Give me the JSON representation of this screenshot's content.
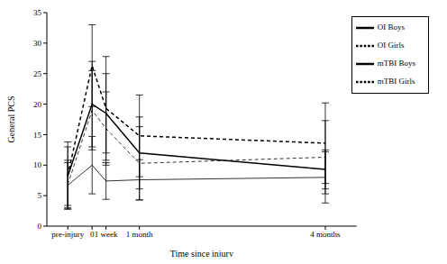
{
  "chart_data": {
    "type": "line",
    "x_label": "Time since injury",
    "y_label": "General PCS",
    "x": [
      -1.75,
      0,
      1,
      3.4,
      16.75
    ],
    "xlim": [
      -3.25,
      19
    ],
    "xticks": [
      {
        "value": -1.75,
        "label": "pre-injury"
      },
      0,
      {
        "value": 1,
        "label": "1 week"
      },
      {
        "value": 3.4,
        "label": "1 month"
      },
      {
        "value": 16.75,
        "label": "4 months"
      }
    ],
    "ylim": [
      0,
      35
    ],
    "yticks": [
      0,
      5,
      10,
      15,
      20,
      25,
      30,
      35
    ],
    "grid": false,
    "legend": "upper right",
    "series": [
      {
        "name": "mTBI Girls",
        "color": "#000000",
        "line_style": "dashed",
        "values": [
          8.3,
          26.3,
          19.3,
          14.8,
          13.6
        ],
        "errors": [
          5.5,
          6.7,
          8.5,
          6.7,
          6.6
        ]
      },
      {
        "name": "mTBI Boys",
        "color": "#000000",
        "line_style": "solid",
        "values": [
          8.2,
          20,
          18.5,
          12,
          9.3
        ],
        "errors": [
          4.8,
          7,
          6.5,
          5.9,
          3.2
        ]
      },
      {
        "name": "OI Girls",
        "color": "#000000",
        "line_style": "dashed",
        "values": [
          6.8,
          19,
          16,
          10.3,
          11.3
        ],
        "errors": [
          4,
          6.5,
          6,
          6,
          6
        ]
      },
      {
        "name": "OI Boys",
        "color": "#000000",
        "line_style": "solid",
        "values": [
          6.7,
          10,
          7.4,
          7.6,
          8
        ],
        "errors": [
          3.7,
          4.7,
          3,
          3.3,
          4.2
        ]
      }
    ]
  }
}
